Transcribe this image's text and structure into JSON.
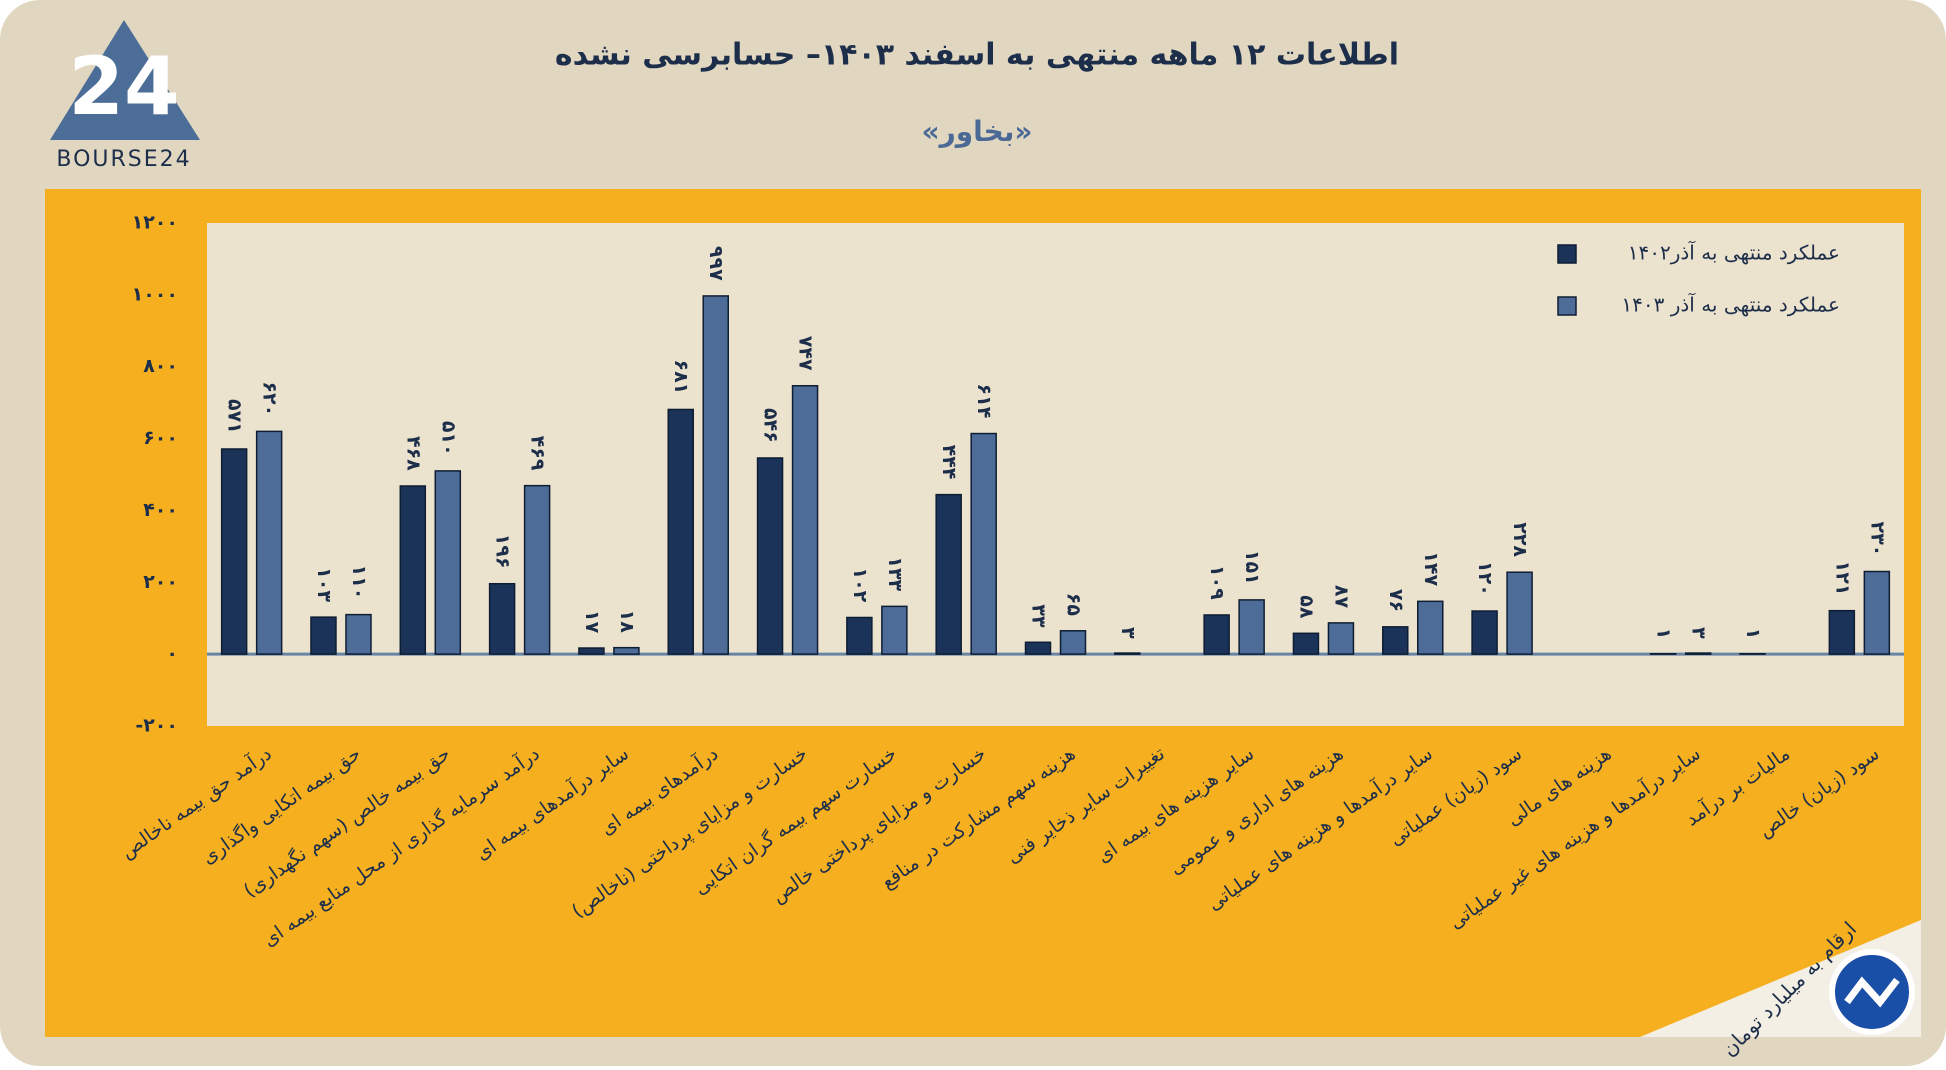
{
  "chart_data": {
    "type": "bar",
    "title": "اطلاعات ۱۲ ماهه منتهی به اسفند ۱۴۰۳– حسابرسی نشده",
    "subtitle": "«بخاور»",
    "logo": "BOURSE24",
    "logo_mark": "24",
    "note": "ارقام به میلیارد تومان",
    "categories": [
      "درآمد حق بیمه ناخالص",
      "حق بیمه اتکایی واگذاری",
      "حق بیمه خالص (سهم نگهداری)",
      "درآمد سرمایه گذاری از محل منابع بیمه ای",
      "سایر درآمدهای بیمه ای",
      "درآمدهای بیمه ای",
      "خسارت و مزایای پرداختی (ناخالص)",
      "خسارت سهم بیمه گران اتکایی",
      "خسارت و مزایای پرداختی خالص",
      "هزینه سهم مشارکت در منافع",
      "تغییرات سایر ذخایر فنی",
      "سایر هزینه های بیمه ای",
      "هزینه های اداری و عمومی",
      "سایر درآمدها و هزینه های عملیاتی",
      "سود (زیان) عملیاتی",
      "هزینه های مالی",
      "سایر درآمدها و هزینه های غیر عملیاتی",
      "مالیات بر درآمد",
      "سود (زیان) خالص"
    ],
    "series": [
      {
        "name": "عملکرد منتهی به آذر۱۴۰۲",
        "color": "#1b3358",
        "values": [
          571,
          103,
          468,
          196,
          17,
          681,
          546,
          102,
          444,
          33,
          3,
          109,
          58,
          76,
          120,
          null,
          1,
          1,
          121
        ],
        "value_labels": [
          "۵۷۱",
          "۱۰۳",
          "۴۶۸",
          "۱۹۶",
          "۱۷",
          "۶۸۱",
          "۵۴۶",
          "۱۰۲",
          "۴۴۴",
          "۳۳",
          "۳",
          "۱۰۹",
          "۵۸",
          "۷۶",
          "۱۲۰",
          null,
          "۱",
          "۱",
          "۱۲۱"
        ]
      },
      {
        "name": "عملکرد منتهی به آذر ۱۴۰۳",
        "color": "#4d6d98",
        "values": [
          620,
          110,
          510,
          469,
          18,
          997,
          747,
          133,
          614,
          65,
          null,
          151,
          87,
          147,
          228,
          null,
          3,
          null,
          230
        ],
        "value_labels": [
          "۶۲۰",
          "۱۱۰",
          "۵۱۰",
          "۴۶۹",
          "۱۸",
          "۹۹۷",
          "۷۴۷",
          "۱۳۳",
          "۶۱۴",
          "۶۵",
          null,
          "۱۵۱",
          "۸۷",
          "۱۴۷",
          "۲۲۸",
          null,
          "۳",
          null,
          "۲۳۰"
        ]
      }
    ],
    "ylim": [
      -200,
      1200
    ],
    "yticks": [
      {
        "value": -200,
        "label": "-۲۰۰"
      },
      {
        "value": 0,
        "label": "۰"
      },
      {
        "value": 200,
        "label": "۲۰۰"
      },
      {
        "value": 400,
        "label": "۴۰۰"
      },
      {
        "value": 600,
        "label": "۶۰۰"
      },
      {
        "value": 800,
        "label": "۸۰۰"
      },
      {
        "value": 1000,
        "label": "۱۰۰۰"
      },
      {
        "value": 1200,
        "label": "۱۲۰۰"
      }
    ],
    "grid": false,
    "legend": "top-right"
  }
}
